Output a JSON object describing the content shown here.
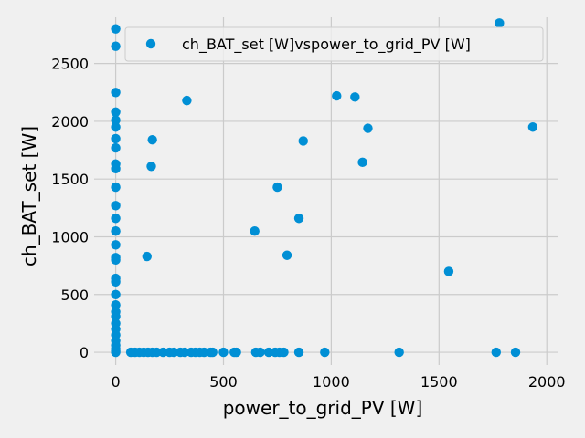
{
  "chart_data": {
    "type": "scatter",
    "title": "",
    "xlabel": "power_to_grid_PV [W]",
    "ylabel": "ch_BAT_set [W]",
    "xlim": [
      -100,
      2050
    ],
    "ylim": [
      -110,
      2900
    ],
    "xticks": [
      0,
      500,
      1000,
      1500,
      2000
    ],
    "yticks": [
      0,
      500,
      1000,
      1500,
      2000,
      2500
    ],
    "grid": true,
    "legend_position": "top-right",
    "series": [
      {
        "name": "ch_BAT_set [W]vspower_to_grid_PV [W]",
        "color": "#008fd5",
        "points": [
          [
            0,
            2800
          ],
          [
            0,
            2650
          ],
          [
            0,
            2250
          ],
          [
            0,
            2080
          ],
          [
            0,
            2010
          ],
          [
            0,
            1950
          ],
          [
            0,
            1850
          ],
          [
            0,
            1770
          ],
          [
            0,
            1630
          ],
          [
            0,
            1590
          ],
          [
            0,
            1430
          ],
          [
            0,
            1270
          ],
          [
            0,
            1160
          ],
          [
            0,
            1050
          ],
          [
            0,
            930
          ],
          [
            0,
            820
          ],
          [
            0,
            800
          ],
          [
            0,
            640
          ],
          [
            0,
            610
          ],
          [
            0,
            500
          ],
          [
            0,
            410
          ],
          [
            0,
            350
          ],
          [
            0,
            310
          ],
          [
            0,
            250
          ],
          [
            0,
            200
          ],
          [
            0,
            150
          ],
          [
            0,
            100
          ],
          [
            0,
            60
          ],
          [
            0,
            30
          ],
          [
            0,
            10
          ],
          [
            0,
            0
          ],
          [
            70,
            0
          ],
          [
            90,
            0
          ],
          [
            110,
            0
          ],
          [
            130,
            0
          ],
          [
            150,
            0
          ],
          [
            170,
            0
          ],
          [
            190,
            0
          ],
          [
            220,
            0
          ],
          [
            250,
            0
          ],
          [
            270,
            0
          ],
          [
            300,
            0
          ],
          [
            320,
            0
          ],
          [
            350,
            0
          ],
          [
            370,
            0
          ],
          [
            390,
            0
          ],
          [
            410,
            0
          ],
          [
            440,
            0
          ],
          [
            450,
            0
          ],
          [
            500,
            0
          ],
          [
            550,
            0
          ],
          [
            560,
            0
          ],
          [
            650,
            0
          ],
          [
            670,
            0
          ],
          [
            710,
            0
          ],
          [
            740,
            0
          ],
          [
            760,
            0
          ],
          [
            780,
            0
          ],
          [
            850,
            0
          ],
          [
            970,
            0
          ],
          [
            1315,
            0
          ],
          [
            1765,
            0
          ],
          [
            1855,
            0
          ],
          [
            145,
            830
          ],
          [
            165,
            1610
          ],
          [
            170,
            1840
          ],
          [
            330,
            2180
          ],
          [
            645,
            1050
          ],
          [
            750,
            1430
          ],
          [
            795,
            840
          ],
          [
            850,
            1160
          ],
          [
            870,
            1830
          ],
          [
            1025,
            2220
          ],
          [
            1110,
            2210
          ],
          [
            1145,
            1645
          ],
          [
            1170,
            1940
          ],
          [
            1545,
            700
          ],
          [
            1780,
            2850
          ],
          [
            1935,
            1950
          ]
        ]
      }
    ]
  }
}
